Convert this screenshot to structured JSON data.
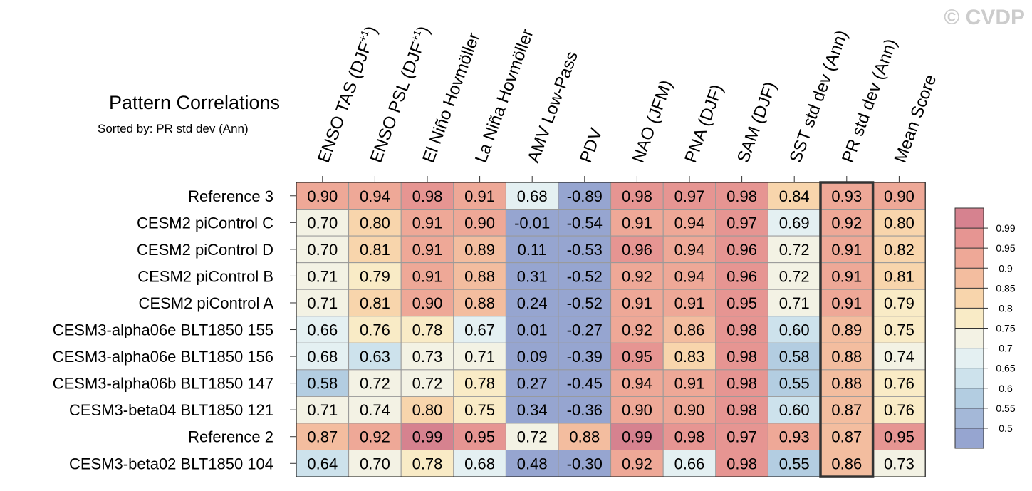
{
  "watermark": "© CVDP",
  "chart_data": {
    "type": "heatmap",
    "title": "Pattern Correlations",
    "subtitle": "Sorted by: PR std dev (Ann)",
    "sorted_column": "PR std dev (Ann)",
    "columns": [
      {
        "label": "ENSO TAS (DJF",
        "sup": "+1",
        "close": ")"
      },
      {
        "label": "ENSO PSL (DJF",
        "sup": "+1",
        "close": ")"
      },
      {
        "label": "El Niño Hovmöller"
      },
      {
        "label": "La Niña Hovmöller"
      },
      {
        "label": "AMV Low-Pass"
      },
      {
        "label": "PDV"
      },
      {
        "label": "NAO (JFM)"
      },
      {
        "label": "PNA (DJF)"
      },
      {
        "label": "SAM (DJF)"
      },
      {
        "label": "SST std dev (Ann)"
      },
      {
        "label": "PR std dev (Ann)"
      },
      {
        "label": "Mean Score"
      }
    ],
    "rows": [
      "Reference 3",
      "CESM2 piControl C",
      "CESM2 piControl D",
      "CESM2 piControl B",
      "CESM2 piControl A",
      "CESM3-alpha06e BLT1850 155",
      "CESM3-alpha06e BLT1850 156",
      "CESM3-alpha06b BLT1850 147",
      "CESM3-beta04 BLT1850 121",
      "Reference 2",
      "CESM3-beta02 BLT1850 104"
    ],
    "values": [
      [
        "0.90",
        "0.94",
        "0.98",
        "0.91",
        "0.68",
        "-0.89",
        "0.98",
        "0.97",
        "0.98",
        "0.84",
        "0.93",
        "0.90"
      ],
      [
        "0.70",
        "0.80",
        "0.91",
        "0.90",
        "-0.01",
        "-0.54",
        "0.91",
        "0.94",
        "0.97",
        "0.69",
        "0.92",
        "0.80"
      ],
      [
        "0.70",
        "0.81",
        "0.91",
        "0.89",
        "0.11",
        "-0.53",
        "0.96",
        "0.94",
        "0.96",
        "0.72",
        "0.91",
        "0.82"
      ],
      [
        "0.71",
        "0.79",
        "0.91",
        "0.88",
        "0.31",
        "-0.52",
        "0.92",
        "0.94",
        "0.96",
        "0.72",
        "0.91",
        "0.81"
      ],
      [
        "0.71",
        "0.81",
        "0.90",
        "0.88",
        "0.24",
        "-0.52",
        "0.91",
        "0.91",
        "0.95",
        "0.71",
        "0.91",
        "0.79"
      ],
      [
        "0.66",
        "0.76",
        "0.78",
        "0.67",
        "0.01",
        "-0.27",
        "0.92",
        "0.86",
        "0.98",
        "0.60",
        "0.89",
        "0.75"
      ],
      [
        "0.68",
        "0.63",
        "0.73",
        "0.71",
        "0.09",
        "-0.39",
        "0.95",
        "0.83",
        "0.98",
        "0.58",
        "0.88",
        "0.74"
      ],
      [
        "0.58",
        "0.72",
        "0.72",
        "0.78",
        "0.27",
        "-0.45",
        "0.94",
        "0.91",
        "0.98",
        "0.55",
        "0.88",
        "0.76"
      ],
      [
        "0.71",
        "0.74",
        "0.80",
        "0.75",
        "0.34",
        "-0.36",
        "0.90",
        "0.90",
        "0.98",
        "0.60",
        "0.87",
        "0.76"
      ],
      [
        "0.87",
        "0.92",
        "0.99",
        "0.95",
        "0.72",
        "0.88",
        "0.99",
        "0.98",
        "0.97",
        "0.93",
        "0.87",
        "0.95"
      ],
      [
        "0.64",
        "0.70",
        "0.78",
        "0.68",
        "0.48",
        "-0.30",
        "0.92",
        "0.66",
        "0.98",
        "0.55",
        "0.86",
        "0.73"
      ]
    ],
    "colorbar": {
      "levels": [
        "0.99",
        "0.95",
        "0.9",
        "0.85",
        "0.8",
        "0.75",
        "0.7",
        "0.65",
        "0.6",
        "0.55",
        "0.5"
      ],
      "thresholds": [
        0.99,
        0.95,
        0.9,
        0.85,
        0.8,
        0.75,
        0.7,
        0.65,
        0.6,
        0.55,
        0.5
      ],
      "colors": [
        "#d6828f",
        "#e69592",
        "#eea897",
        "#f3bd9f",
        "#f8d5ac",
        "#f9ebc6",
        "#f3f2e4",
        "#e4f0f2",
        "#cde2ec",
        "#b3cde1",
        "#a4b8d8",
        "#96a5d0"
      ]
    }
  }
}
